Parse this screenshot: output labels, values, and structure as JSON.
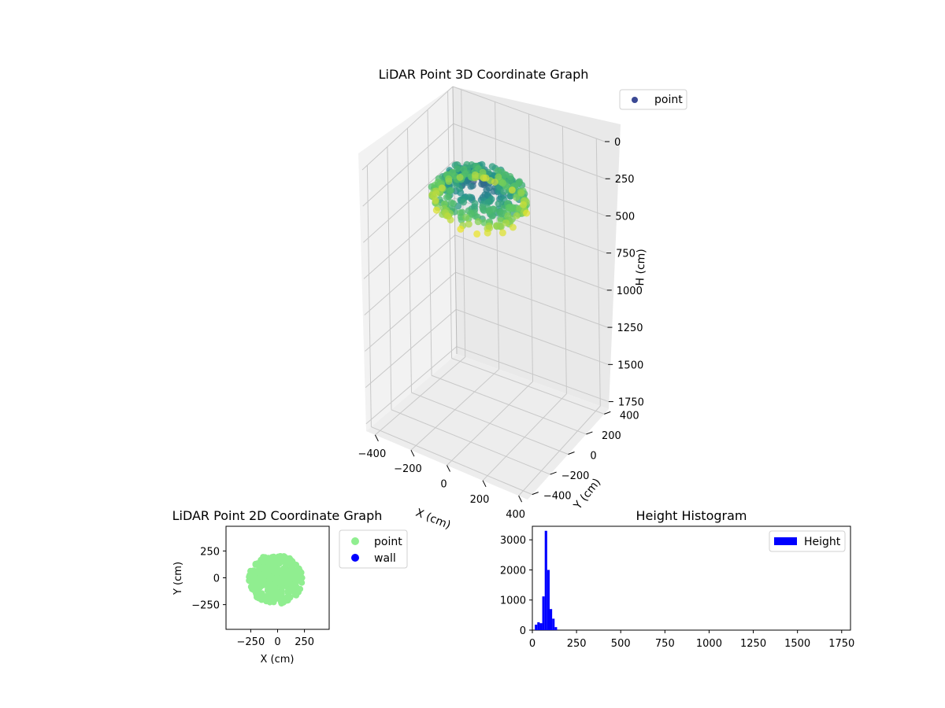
{
  "chart_data": [
    {
      "type": "scatter3d",
      "title": "LiDAR Point 3D Coordinate Graph",
      "xlabel": "X (cm)",
      "ylabel": "Y (cm)",
      "zlabel": "H (cm)",
      "x_ticks": [
        -400,
        -200,
        0,
        200,
        400
      ],
      "y_ticks": [
        -400,
        -200,
        0,
        200,
        400
      ],
      "z_ticks": [
        0,
        250,
        500,
        750,
        1000,
        1250,
        1500,
        1750
      ],
      "xlim": [
        -450,
        450
      ],
      "ylim": [
        -450,
        450
      ],
      "zlim": [
        0,
        1800
      ],
      "z_inverted": true,
      "legend": [
        "point"
      ],
      "legend_loc": "upper-right",
      "colormap": "viridis",
      "series": [
        {
          "name": "point",
          "color": "#3b4994",
          "cluster": {
            "x_range": [
              -280,
              220
            ],
            "y_range": [
              -250,
              210
            ],
            "h_range": [
              40,
              330
            ]
          }
        }
      ]
    },
    {
      "type": "scatter",
      "title": "LiDAR Point 2D Coordinate Graph",
      "xlabel": "X (cm)",
      "ylabel": "Y (cm)",
      "x_ticks": [
        -250,
        0,
        250
      ],
      "y_ticks": [
        250,
        0,
        -250
      ],
      "xlim": [
        -480,
        480
      ],
      "ylim": [
        -480,
        480
      ],
      "legend": [
        "point",
        "wall"
      ],
      "legend_loc": "outside-right",
      "series": [
        {
          "name": "point",
          "color": "#90ee90",
          "cluster": {
            "x_range": [
              -270,
              230
            ],
            "y_range": [
              -250,
              220
            ]
          }
        },
        {
          "name": "wall",
          "color": "#0000ff",
          "points": []
        }
      ]
    },
    {
      "type": "histogram",
      "title": "Height Histogram",
      "legend": [
        "Height"
      ],
      "legend_loc": "upper-right",
      "bar_color": "#0000ff",
      "xlim": [
        0,
        1800
      ],
      "ylim": [
        0,
        3450
      ],
      "x_ticks": [
        0,
        250,
        500,
        750,
        1000,
        1250,
        1500,
        1750
      ],
      "y_ticks": [
        0,
        1000,
        2000,
        3000
      ],
      "bin_width": 14,
      "bins": [
        {
          "start": 14,
          "count": 180
        },
        {
          "start": 28,
          "count": 260
        },
        {
          "start": 42,
          "count": 230
        },
        {
          "start": 56,
          "count": 1120
        },
        {
          "start": 70,
          "count": 3300
        },
        {
          "start": 84,
          "count": 2000
        },
        {
          "start": 98,
          "count": 700
        },
        {
          "start": 112,
          "count": 380
        },
        {
          "start": 126,
          "count": 100
        }
      ]
    }
  ]
}
